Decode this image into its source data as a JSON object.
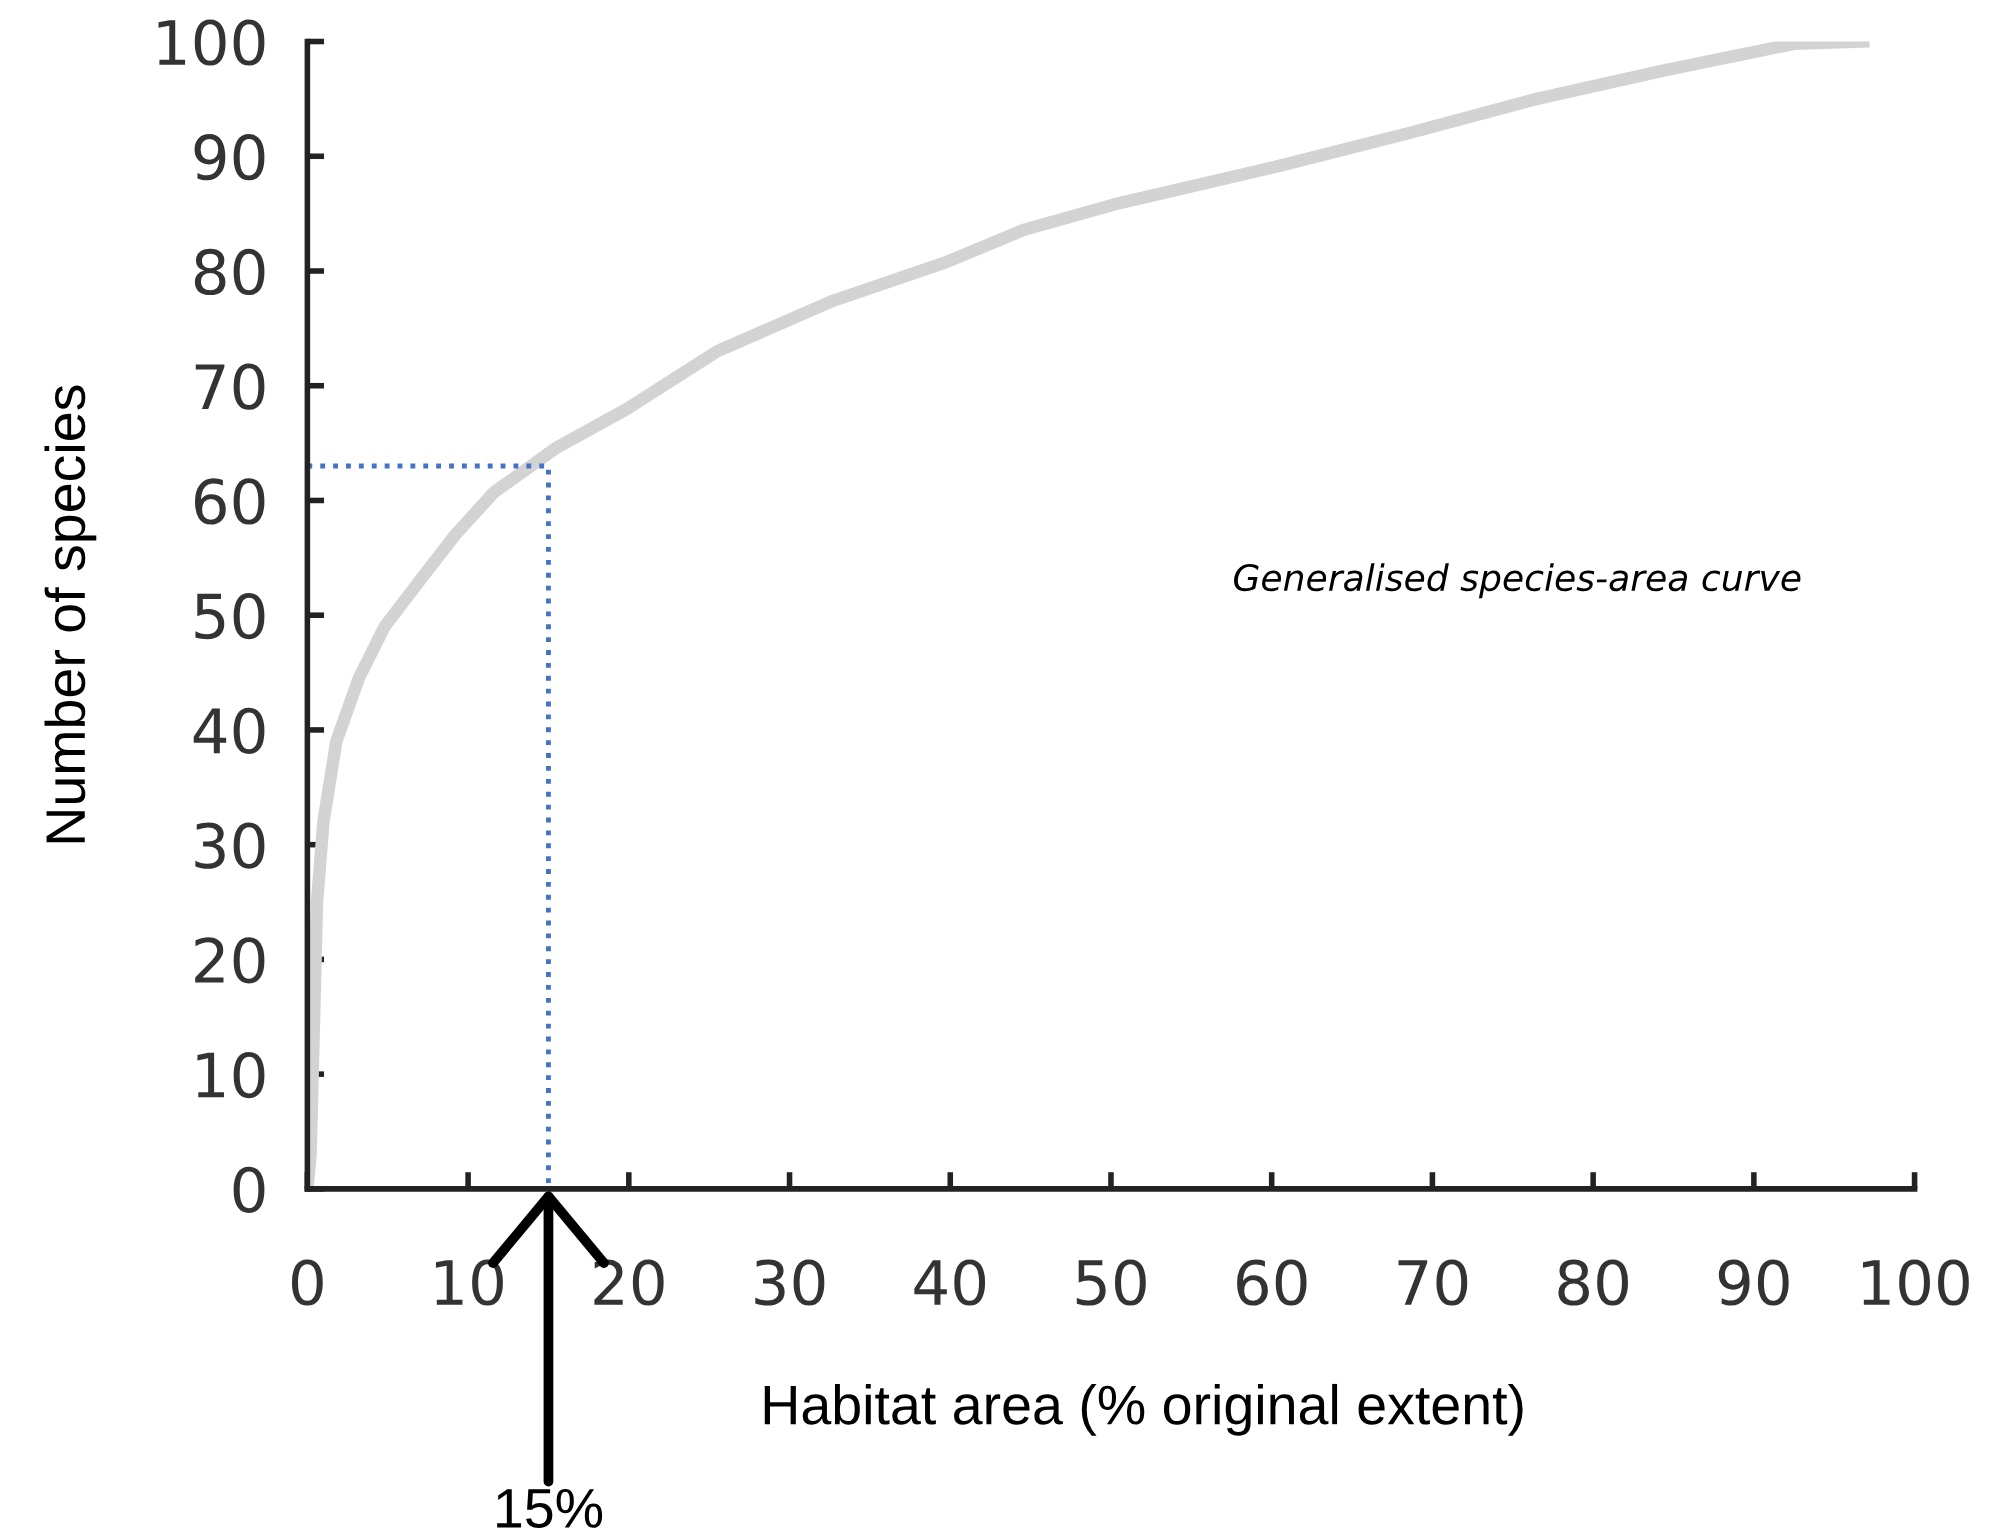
{
  "chart_data": {
    "type": "line",
    "xlabel": "Habitat area (% original extent)",
    "ylabel": "Number of species",
    "xlim": [
      0,
      100
    ],
    "ylim": [
      0,
      100
    ],
    "xticks": [
      0,
      10,
      20,
      30,
      40,
      50,
      60,
      70,
      80,
      90,
      100
    ],
    "yticks": [
      0,
      10,
      20,
      30,
      40,
      50,
      60,
      70,
      80,
      90,
      100
    ],
    "grid": false,
    "legend": false,
    "marker": "none",
    "series": [
      {
        "color": "#d3d3d3",
        "line_style": "solid",
        "x": [
          0,
          0.2,
          0.4,
          0.6,
          1,
          1.8,
          3.2,
          4.8,
          7.2,
          9.2,
          11.6,
          15.5,
          19.9,
          25.5,
          32.7,
          39.8,
          44.6,
          50.2,
          60.6,
          68.5,
          76.5,
          84.5,
          92.5,
          96.8
        ],
        "values": [
          0,
          3,
          14,
          25,
          32,
          39,
          44.5,
          49,
          53.4,
          57,
          60.7,
          64.6,
          68,
          73,
          77.4,
          80.8,
          83.6,
          85.8,
          89.2,
          92,
          95,
          97.5,
          99.8,
          100
        ]
      },
      {
        "color": "#4472c4",
        "line_style": "dotted",
        "x": [
          0,
          15,
          15
        ],
        "values": [
          63,
          63,
          0
        ]
      }
    ],
    "annotations": [
      "Generalised species-area curve",
      {
        "text": "15%",
        "x": 15,
        "y": 0
      }
    ]
  }
}
